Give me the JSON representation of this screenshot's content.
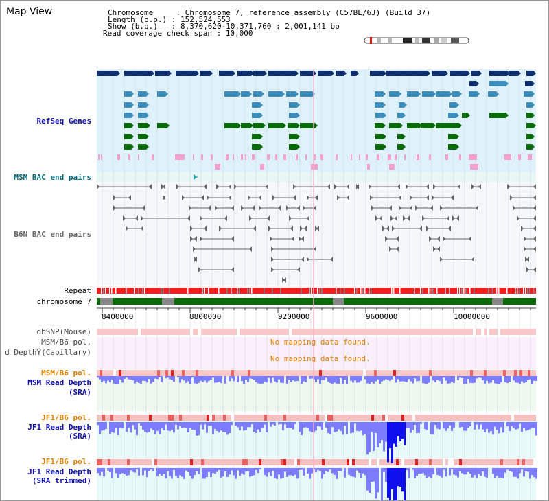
{
  "title": "Map View",
  "header": {
    "line1": "Chromosome     : Chromosome 7, reference assembly (C57BL/6J) (Build 37)",
    "line2": "Length (b.p.) : 152,524,553",
    "line3": "Show (b.p.)   : 8,370,620-10,371,760 : 2,001,141 bp",
    "line4": "Read coverage check span : 10,000"
  },
  "tracks": {
    "refseq": "RefSeq Genes",
    "msm_bac": "MSM BAC end pairs",
    "b6n_bac": "B6N BAC end pairs",
    "repeat": "Repeat",
    "chromosome": "chromosome 7",
    "dbsnp": "dbSNP(Mouse)",
    "msm_b6_pol_cap": "MSM/B6 pol.",
    "depth_cap": "d DepthŸ(Capillary)",
    "msm_b6_pol_sra": "MSM/B6 pol.",
    "msm_depth_1": "MSM Read Depth",
    "msm_depth_2": "(SRA)",
    "jf1_pol_1": "JF1/B6 pol.",
    "jf1_depth_1": "JF1 Read Depth",
    "jf1_depth_2": "(SRA)",
    "jf1_pol_2": "JF1/B6 pol.",
    "jf1_trim_1": "JF1 Read Depth",
    "jf1_trim_2": "(SRA trimmed)"
  },
  "messages": {
    "no_data_1": "No mapping data found.",
    "no_data_2": "No mapping data found."
  },
  "axis_ticks": [
    "8400000",
    "8800000",
    "9200000",
    "9600000",
    "10000000"
  ],
  "colors": {
    "refseq_bg": "#dff1fb",
    "bac_bg": "#eef7fa",
    "gene_dark": "#0e2e6e",
    "gene_mid": "#3d8dbd",
    "gene_green": "#0a6a0a",
    "gene_pink": "#f5a0d0",
    "repeat_red": "#ee2020",
    "chrom_green": "#0a6a0a",
    "snp_pink": "#f8c8c8",
    "depth_blue": "#7c7cff",
    "depth_dark": "#1010ee"
  }
}
